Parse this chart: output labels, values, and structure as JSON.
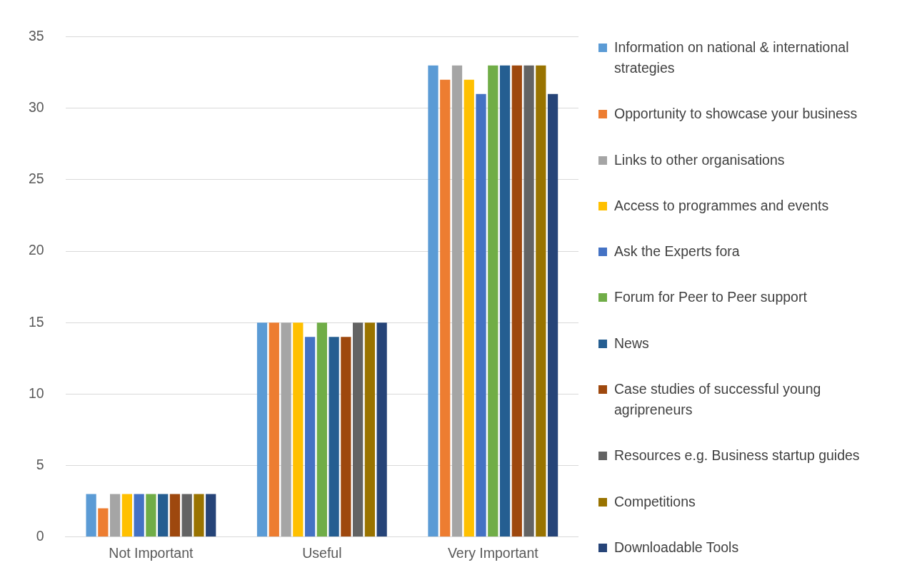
{
  "chart_data": {
    "type": "bar",
    "categories": [
      "Not Important",
      "Useful",
      "Very Important"
    ],
    "series": [
      {
        "name": "Information on national & international strategies",
        "color": "#5b9bd5",
        "values": [
          3,
          15,
          33
        ]
      },
      {
        "name": "Opportunity to showcase your business",
        "color": "#ed7d31",
        "values": [
          2,
          15,
          32
        ]
      },
      {
        "name": "Links to other organisations",
        "color": "#a5a5a5",
        "values": [
          3,
          15,
          33
        ]
      },
      {
        "name": "Access to programmes and events",
        "color": "#ffc000",
        "values": [
          3,
          15,
          32
        ]
      },
      {
        "name": "Ask the Experts fora",
        "color": "#4472c4",
        "values": [
          3,
          14,
          31
        ]
      },
      {
        "name": "Forum for Peer to Peer support",
        "color": "#70ad47",
        "values": [
          3,
          15,
          33
        ]
      },
      {
        "name": "News",
        "color": "#255e91",
        "values": [
          3,
          14,
          33
        ]
      },
      {
        "name": "Case studies of successful young agripreneurs",
        "color": "#9e480e",
        "values": [
          3,
          14,
          33
        ]
      },
      {
        "name": "Resources e.g. Business startup guides",
        "color": "#636363",
        "values": [
          3,
          15,
          33
        ]
      },
      {
        "name": "Competitions",
        "color": "#997300",
        "values": [
          3,
          15,
          33
        ]
      },
      {
        "name": "Downloadable Tools",
        "color": "#264478",
        "values": [
          3,
          15,
          31
        ]
      }
    ],
    "ylim": [
      0,
      35
    ],
    "yticks": [
      0,
      5,
      10,
      15,
      20,
      25,
      30,
      35
    ],
    "grid": "y",
    "legend": "right"
  }
}
